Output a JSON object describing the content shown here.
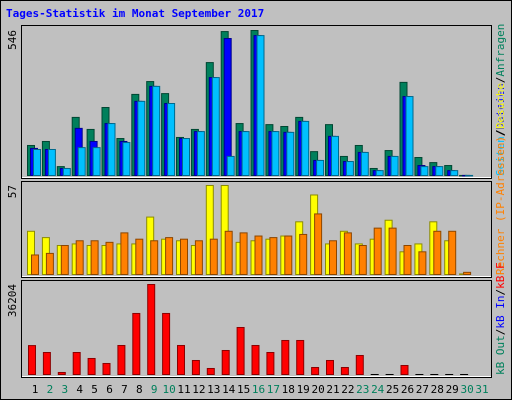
{
  "chart_data": {
    "type": "bar",
    "title": "Tages-Statistik im Monat September 2017",
    "separator": "/",
    "categories": [
      "1",
      "2",
      "3",
      "4",
      "5",
      "6",
      "7",
      "8",
      "9",
      "10",
      "11",
      "12",
      "13",
      "14",
      "15",
      "16",
      "17",
      "18",
      "19",
      "20",
      "21",
      "22",
      "23",
      "24",
      "25",
      "26",
      "27",
      "28",
      "29",
      "30",
      "31"
    ],
    "label_colors": [
      "#000000",
      "#00805c",
      "#00805c",
      "#000000",
      "#000000",
      "#000000",
      "#000000",
      "#000000",
      "#00805c",
      "#00805c",
      "#000000",
      "#000000",
      "#000000",
      "#000000",
      "#000000",
      "#00805c",
      "#00805c",
      "#000000",
      "#000000",
      "#000000",
      "#000000",
      "#000000",
      "#00805c",
      "#00805c",
      "#000000",
      "#000000",
      "#000000",
      "#000000",
      "#000000",
      "#00805c",
      "#00805c"
    ],
    "panels": [
      {
        "ylim": [
          0,
          546
        ],
        "yticks": [
          546
        ],
        "series": [
          {
            "name": "Anfragen",
            "color": "#00805c",
            "values": [
              116,
              131,
              37,
              221,
              176,
              258,
              142,
              307,
              355,
              310,
              146,
              176,
              426,
              542,
              198,
              546,
              194,
              187,
              221,
              93,
              194,
              75,
              116,
              30,
              97,
              352,
              71,
              52,
              41,
              4,
              null
            ]
          },
          {
            "name": "Dateien",
            "color": "#0000ff",
            "values": [
              105,
              101,
              30,
              180,
              131,
              198,
              131,
              281,
              337,
              273,
              142,
              168,
              370,
              516,
              168,
              527,
              168,
              165,
              206,
              60,
              150,
              56,
              90,
              22,
              75,
              299,
              41,
              37,
              22,
              4,
              null
            ]
          },
          {
            "name": "Seiten",
            "color": "#00c0ff",
            "values": [
              101,
              101,
              30,
              108,
              108,
              198,
              127,
              281,
              337,
              273,
              142,
              168,
              370,
              75,
              168,
              527,
              168,
              165,
              206,
              60,
              150,
              56,
              90,
              22,
              75,
              299,
              37,
              37,
              22,
              4,
              null
            ]
          }
        ]
      },
      {
        "ylim": [
          0,
          57
        ],
        "yticks": [
          57
        ],
        "series": [
          {
            "name": "Besuche",
            "color": "#ffff00",
            "values": [
              28,
              24,
              19,
              20,
              19,
              19,
              20,
              20,
              37,
              23,
              22,
              19,
              57,
              57,
              21,
              22,
              23,
              25,
              34,
              51,
              20,
              28,
              20,
              23,
              35,
              15,
              20,
              34,
              22,
              1,
              null
            ]
          },
          {
            "name": "Rechner (IP-Adressen)",
            "color": "#ff8000",
            "values": [
              13,
              14,
              19,
              22,
              22,
              21,
              27,
              23,
              22,
              24,
              23,
              22,
              23,
              28,
              27,
              25,
              24,
              25,
              26,
              39,
              22,
              27,
              19,
              30,
              30,
              19,
              15,
              28,
              28,
              2,
              null
            ]
          }
        ]
      },
      {
        "ylim": [
          0,
          36204
        ],
        "yticks": [
          36204
        ],
        "series": [
          {
            "name": "kB F",
            "color": "#ff0000",
            "values": [
              11900,
              9150,
              1200,
              9150,
              6770,
              4780,
              11940,
              24680,
              36204,
              24680,
              11940,
              5970,
              2790,
              9950,
              19100,
              11940,
              9150,
              13930,
              13930,
              3180,
              5970,
              3180,
              7960,
              0,
              0,
              3980,
              0,
              0,
              0,
              0,
              null
            ]
          }
        ],
        "legend_only": [
          {
            "name": "kB In",
            "color": "#0000ff"
          },
          {
            "name": "kB Out",
            "color": "#00805c"
          }
        ]
      }
    ]
  }
}
